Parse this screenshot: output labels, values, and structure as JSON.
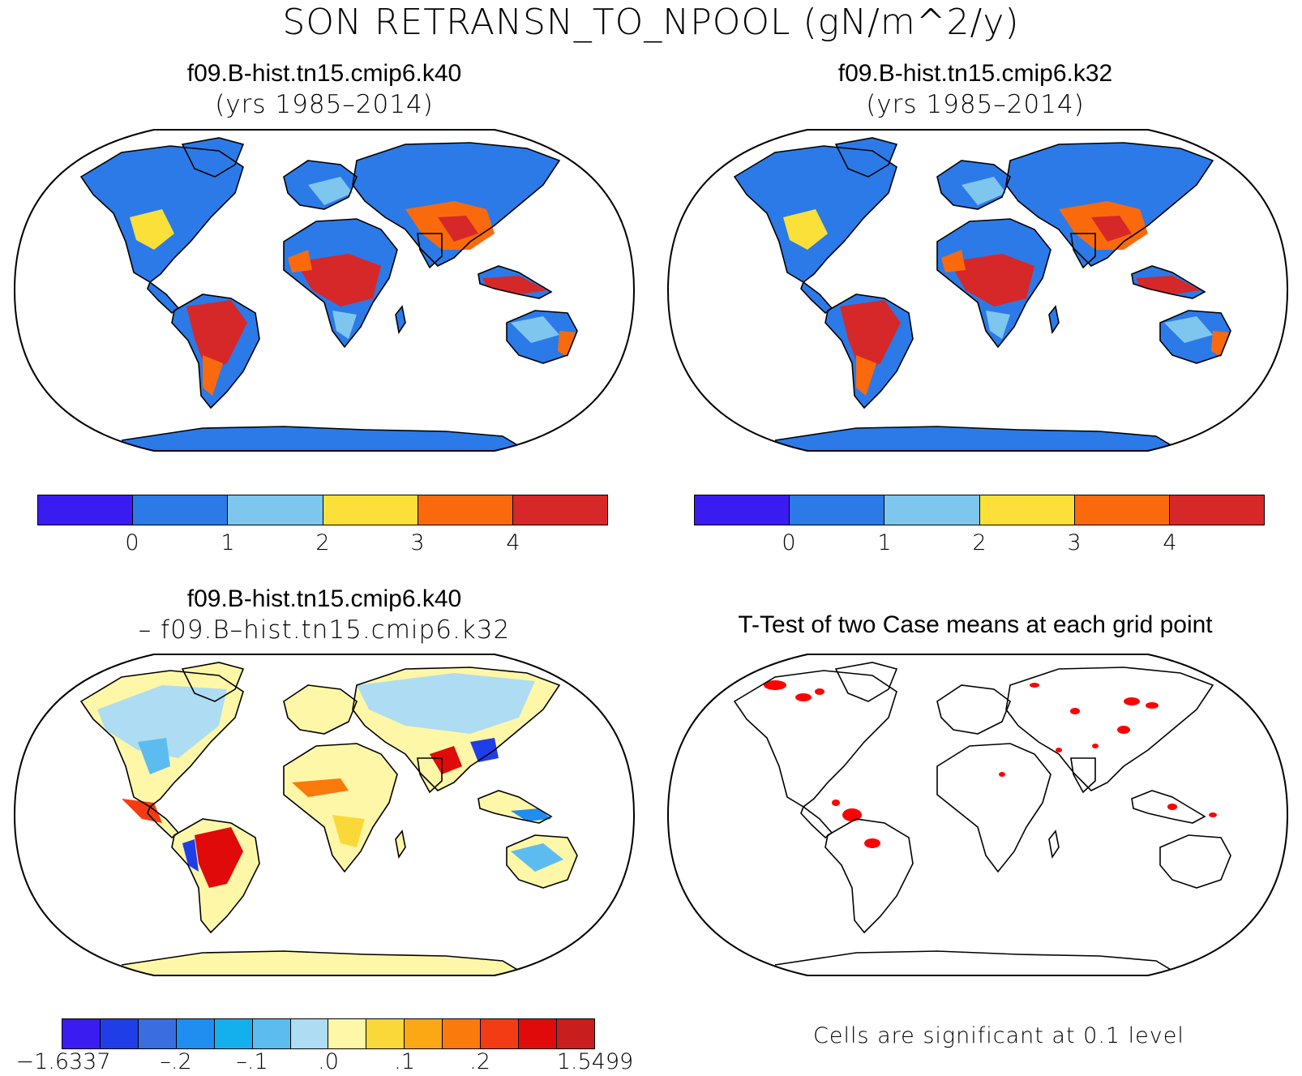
{
  "title": "SON RETRANSN_TO_NPOOL (gN/m^2/y)",
  "panels": {
    "top_left": {
      "title": "f09.B-hist.tn15.cmip6.k40",
      "subtitle": "(yrs 1985–2014)"
    },
    "top_right": {
      "title": "f09.B-hist.tn15.cmip6.k32",
      "subtitle": "(yrs 1985–2014)"
    },
    "bottom_left": {
      "title": "f09.B-hist.tn15.cmip6.k40",
      "subtitle": "– f09.B–hist.tn15.cmip6.k32"
    },
    "bottom_right": {
      "title": "T-Test of two Case means at each grid point",
      "note": "Cells are significant at 0.1 level"
    }
  },
  "colorbar_main": {
    "colors": [
      "#3b1cf0",
      "#2b7ae8",
      "#7ec6ee",
      "#fbe03a",
      "#fa6a0c",
      "#d62828"
    ],
    "ticks": [
      "0",
      "1",
      "2",
      "3",
      "4"
    ]
  },
  "colorbar_diff": {
    "colors": [
      "#3b1cf0",
      "#1f3ee8",
      "#3a6ee0",
      "#1f8ef0",
      "#14b0ee",
      "#5cbcef",
      "#aedcf2",
      "#fff7a8",
      "#fbd83a",
      "#fba814",
      "#fa7a0c",
      "#f43c14",
      "#e00a0a",
      "#c81e1e"
    ],
    "ticks": [
      "−1.6337",
      "–.2",
      "–.1",
      ".0",
      ".1",
      ".2",
      "1.5499"
    ]
  },
  "colors": {
    "ocean": "#ffffff",
    "significant": "#ff0000",
    "land_base_main": "#2b7ae8",
    "land_base_diff": "#fff7a8"
  }
}
